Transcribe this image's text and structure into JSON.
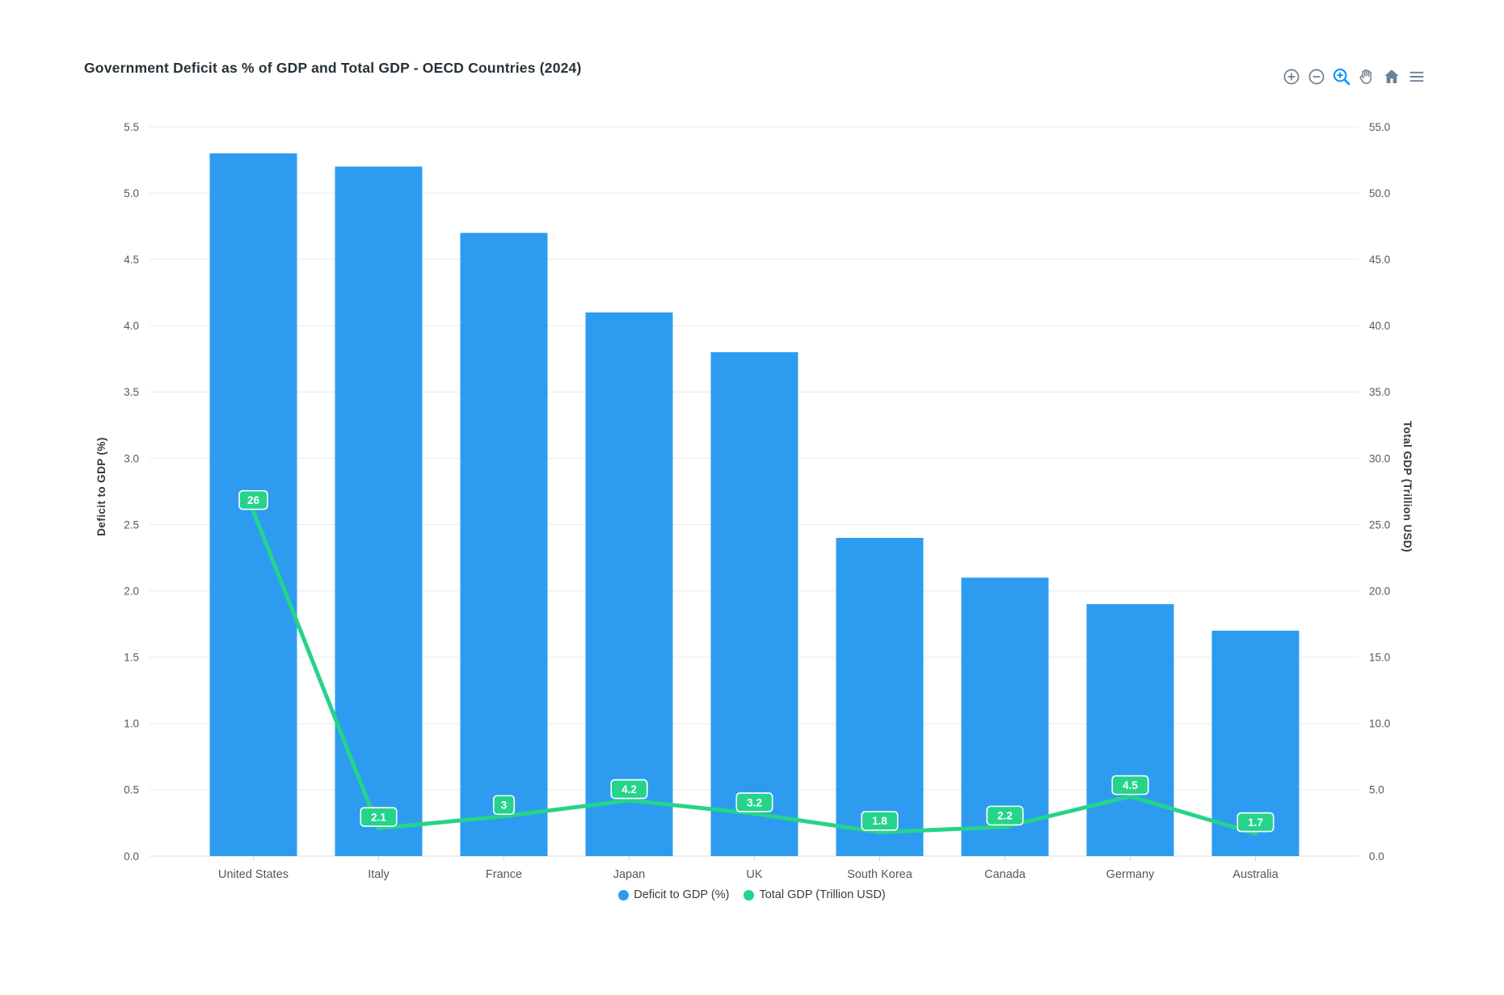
{
  "title": "Government Deficit as % of GDP and Total GDP - OECD Countries (2024)",
  "toolbar": {
    "icons": [
      "zoom-in",
      "zoom-out",
      "selection-zoom",
      "pan",
      "home",
      "menu"
    ],
    "active_icon": "selection-zoom",
    "icon_color": "#6E8192",
    "active_color": "#008FFB"
  },
  "chart_data": {
    "type": "bar+line",
    "title": "Government Deficit as % of GDP and Total GDP - OECD Countries (2024)",
    "categories": [
      "United States",
      "Italy",
      "France",
      "Japan",
      "UK",
      "South Korea",
      "Canada",
      "Germany",
      "Australia"
    ],
    "series": [
      {
        "name": "Deficit to GDP (%)",
        "type": "bar",
        "axis": "left",
        "color": "#2D9CF0",
        "values": [
          5.3,
          5.2,
          4.7,
          4.1,
          3.8,
          2.4,
          2.1,
          1.9,
          1.7
        ]
      },
      {
        "name": "Total GDP (Trillion USD)",
        "type": "line",
        "axis": "right",
        "color": "#25D48A",
        "values": [
          26,
          2.1,
          3,
          4.2,
          3.2,
          1.8,
          2.2,
          4.5,
          1.7
        ],
        "data_labels": [
          "26",
          "2.1",
          "3",
          "4.2",
          "3.2",
          "1.8",
          "2.2",
          "4.5",
          "1.7"
        ]
      }
    ],
    "y_left": {
      "label": "Deficit to GDP (%)",
      "min": 0,
      "max": 5.5,
      "step": 0.5
    },
    "y_right": {
      "label": "Total GDP (Trillion USD)",
      "min": 0,
      "max": 55,
      "step": 5
    },
    "grid": "horizontal",
    "legend_position": "bottom"
  },
  "colors": {
    "grid_line": "#e9e9e9",
    "axis_line": "#dcdcdc",
    "tick_mark": "#d0d4d8",
    "tick_text": "#54595d",
    "axis_title_text": "#33383d",
    "title_text": "#263238",
    "label_text_on_badge": "#ffffff"
  }
}
